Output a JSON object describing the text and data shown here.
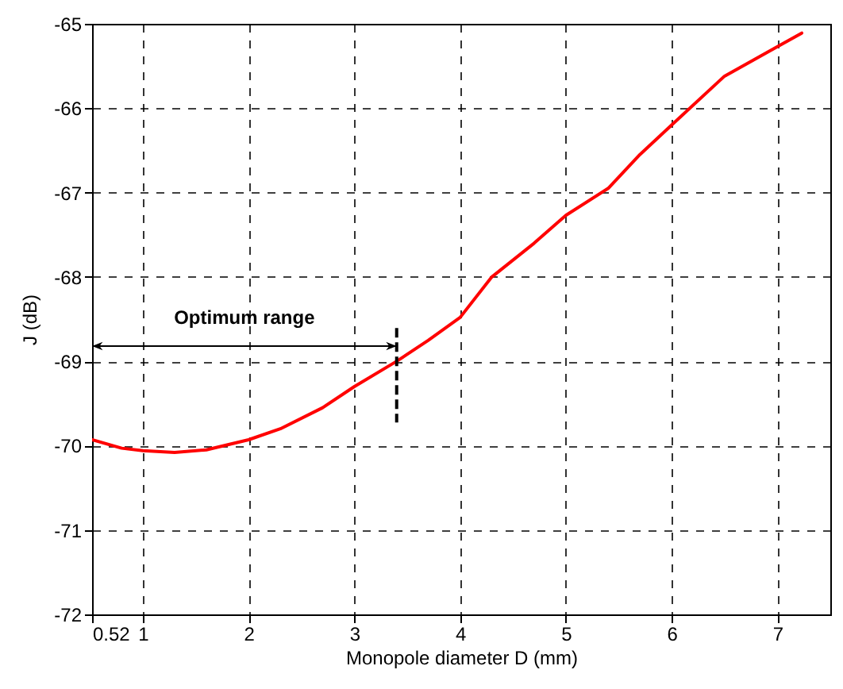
{
  "chart_data": {
    "type": "line",
    "xlabel": "Monopole diameter D (mm)",
    "ylabel": "J (dB)",
    "x": [
      0.52,
      0.8,
      1.0,
      1.3,
      1.6,
      2.0,
      2.3,
      2.7,
      3.0,
      3.4,
      3.7,
      4.0,
      4.3,
      4.7,
      5.0,
      5.4,
      5.7,
      6.0,
      6.5,
      7.0,
      7.23
    ],
    "series": [
      {
        "color": "#ff0000",
        "values": [
          -69.93,
          -70.03,
          -70.06,
          -70.08,
          -70.05,
          -69.93,
          -69.8,
          -69.55,
          -69.3,
          -69.0,
          -68.75,
          -68.48,
          -68.0,
          -67.6,
          -67.27,
          -66.95,
          -66.55,
          -66.2,
          -65.62,
          -65.27,
          -65.11
        ]
      }
    ],
    "xlim": [
      0.52,
      7.5
    ],
    "xticks": [
      0.52,
      1,
      2,
      3,
      4,
      5,
      6,
      7
    ],
    "ylim": [
      -72,
      -65
    ],
    "yticks": [
      -72,
      -71,
      -70,
      -69,
      -68,
      -67,
      -66,
      -65
    ],
    "grid": true,
    "line_style": "solid",
    "marker": "none",
    "ref_lines": [
      {
        "axis": "x",
        "value": 3.4,
        "label": "Optimum range",
        "line_style": "dashed"
      }
    ]
  }
}
